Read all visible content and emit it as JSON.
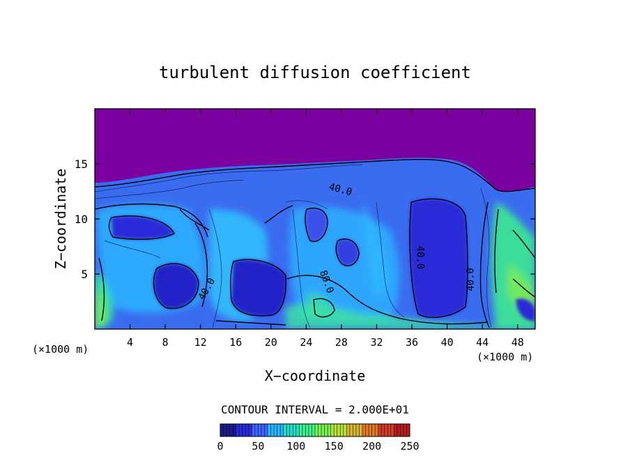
{
  "chart_data": {
    "type": "heatmap",
    "title": "turbulent diffusion coefficient",
    "xlabel": "X−coordinate",
    "ylabel": "Z−coordinate",
    "x_unit_left": "(×1000 m)",
    "x_unit_right": "(×1000 m)",
    "xlim": [
      0,
      50
    ],
    "ylim": [
      0,
      20
    ],
    "xticks": [
      4,
      8,
      12,
      16,
      20,
      24,
      28,
      32,
      36,
      40,
      44,
      48
    ],
    "yticks": [
      5,
      10,
      15
    ],
    "contour_interval_text": "CONTOUR INTERVAL = 2.000E+01",
    "colorbar": {
      "range": [
        0,
        250
      ],
      "ticks": [
        0,
        50,
        100,
        150,
        200,
        250
      ],
      "colors": [
        "#1a1a8c",
        "#2a2ad8",
        "#3c64ff",
        "#28b4ff",
        "#2adcc8",
        "#3cf08c",
        "#78f050",
        "#b4e03c",
        "#d8b432",
        "#e07828",
        "#d03c28",
        "#b41e1e"
      ]
    },
    "background_color": "#7a00a0",
    "contour_labels": [
      {
        "text": "40.0",
        "x": 13.0,
        "z": 3.5,
        "angle": -60
      },
      {
        "text": "40.0",
        "x": 27.8,
        "z": 12.4,
        "angle": 15
      },
      {
        "text": "80.0",
        "x": 26.0,
        "z": 4.2,
        "angle": 70
      },
      {
        "text": "40.0",
        "x": 36.6,
        "z": 6.5,
        "angle": 90
      },
      {
        "text": "40.0",
        "x": 43.0,
        "z": 4.5,
        "angle": -90
      }
    ]
  }
}
